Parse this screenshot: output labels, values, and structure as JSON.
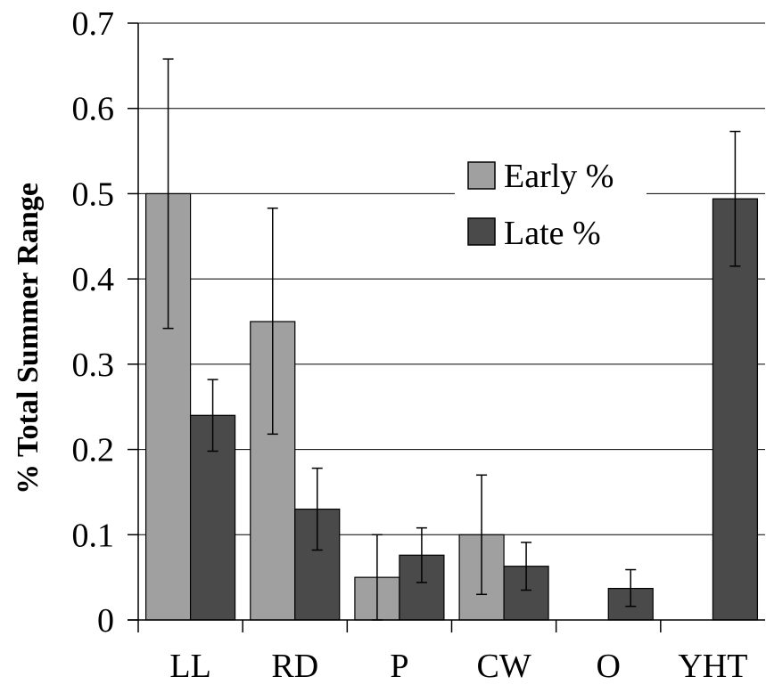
{
  "chart_data": {
    "type": "bar",
    "title": "",
    "xlabel": "",
    "ylabel": "% Total Summer Range",
    "ylim": [
      0,
      0.7
    ],
    "yticks": [
      "0",
      "0.1",
      "0.2",
      "0.3",
      "0.4",
      "0.5",
      "0.6",
      "0.7"
    ],
    "grid": true,
    "legend_position": "upper-middle-right",
    "categories": [
      "LL",
      "RD",
      "P",
      "CW",
      "O",
      "YHT"
    ],
    "series": [
      {
        "name": "Early %",
        "color": "#a0a0a0",
        "values": [
          0.5,
          0.35,
          0.05,
          0.1,
          0,
          0
        ],
        "error_low": [
          0.342,
          0.218,
          0.0,
          0.03,
          null,
          null
        ],
        "error_high": [
          0.658,
          0.483,
          0.1,
          0.17,
          null,
          null
        ]
      },
      {
        "name": "Late %",
        "color": "#4a4a4a",
        "values": [
          0.24,
          0.13,
          0.076,
          0.063,
          0.037,
          0.494
        ],
        "error_low": [
          0.198,
          0.082,
          0.044,
          0.035,
          0.016,
          0.415
        ],
        "error_high": [
          0.282,
          0.178,
          0.108,
          0.091,
          0.059,
          0.573
        ]
      }
    ]
  }
}
